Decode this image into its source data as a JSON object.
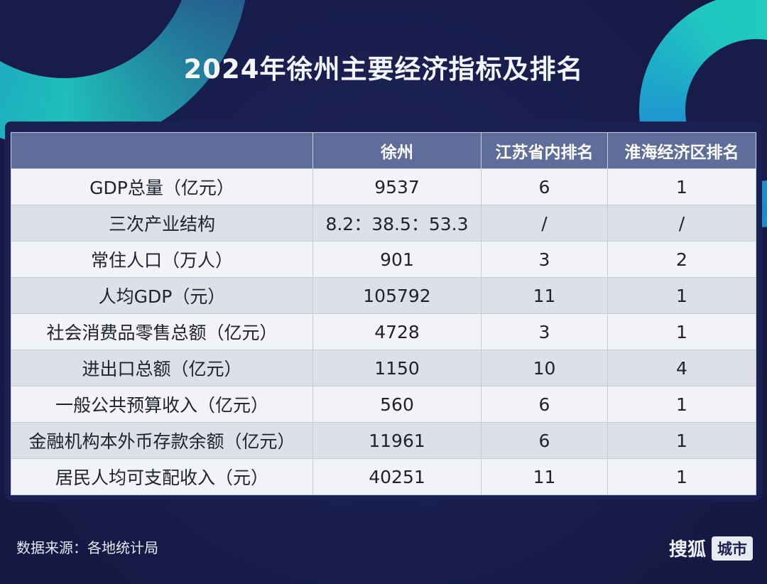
{
  "title": "2024年徐州主要经济指标及排名",
  "table": {
    "headers": [
      "",
      "徐州",
      "江苏省内排名",
      "淮海经济区排名"
    ],
    "rows": [
      [
        "GDP总量（亿元）",
        "9537",
        "6",
        "1"
      ],
      [
        "三次产业结构",
        "8.2：38.5：53.3",
        "/",
        "/"
      ],
      [
        "常住人口（万人）",
        "901",
        "3",
        "2"
      ],
      [
        "人均GDP（元）",
        "105792",
        "11",
        "1"
      ],
      [
        "社会消费品零售总额（亿元）",
        "4728",
        "3",
        "1"
      ],
      [
        "进出口总额（亿元）",
        "1150",
        "10",
        "4"
      ],
      [
        "一般公共预算收入（亿元）",
        "560",
        "6",
        "1"
      ],
      [
        "金融机构本外币存款余额（亿元）",
        "11961",
        "6",
        "1"
      ],
      [
        "居民人均可支配收入（元）",
        "40251",
        "11",
        "1"
      ]
    ]
  },
  "footer": {
    "source": "数据来源：各地统计局",
    "brand_name": "搜狐",
    "brand_tag": "城市"
  }
}
